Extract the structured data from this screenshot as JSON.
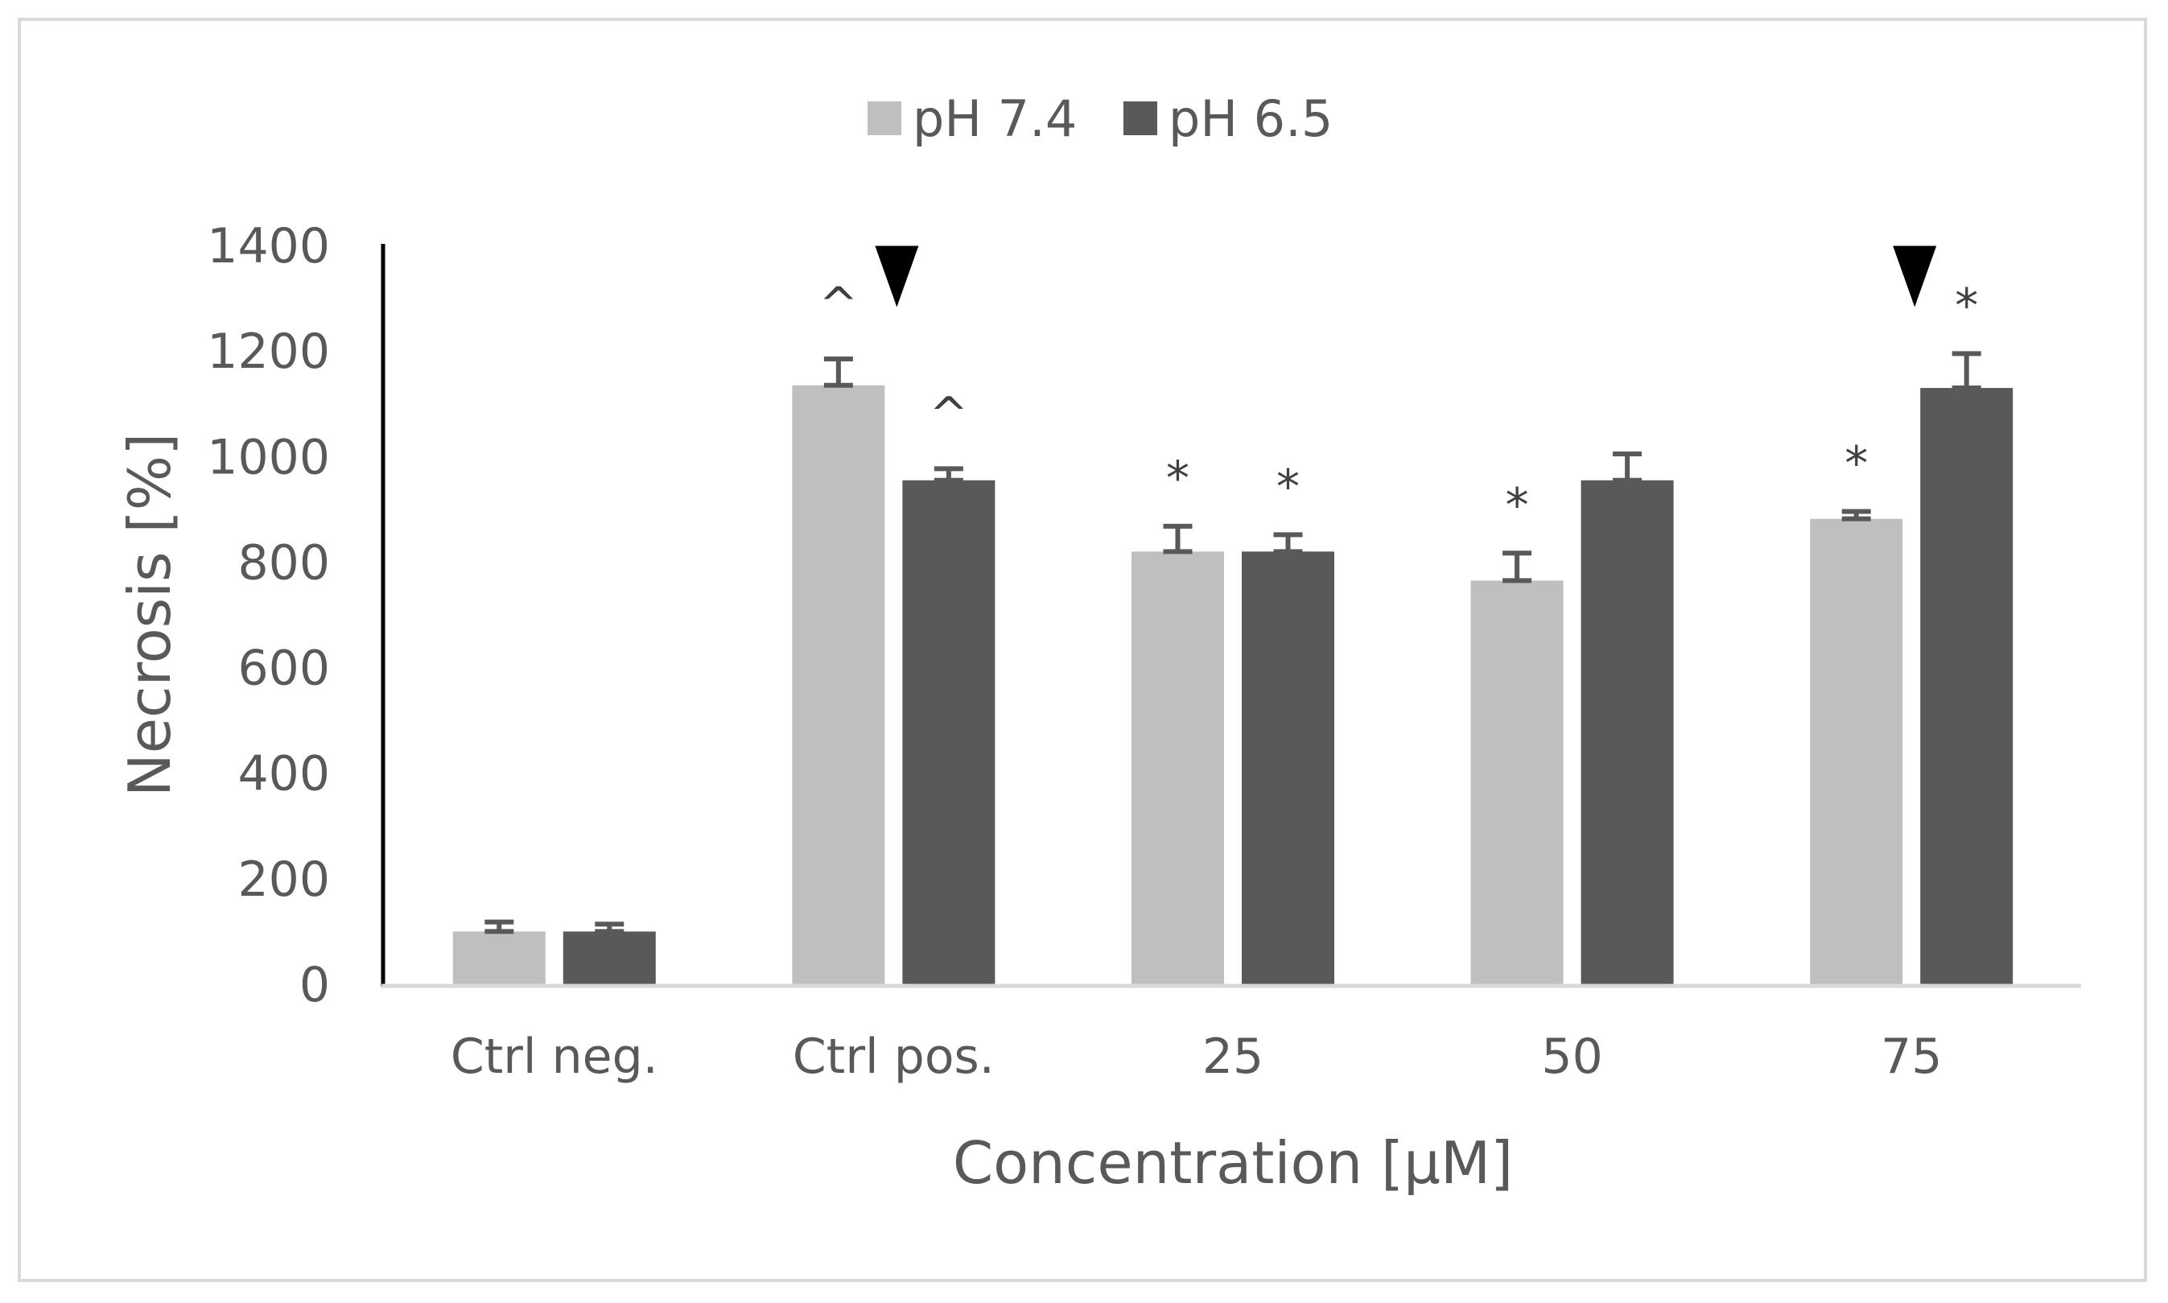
{
  "chart_data": {
    "type": "bar",
    "title": "",
    "xlabel": "Concentration [µM]",
    "ylabel": "Necrosis [%]",
    "ylim": [
      0,
      1400
    ],
    "yticks": [
      0,
      200,
      400,
      600,
      800,
      1000,
      1200,
      1400
    ],
    "categories": [
      "Ctrl neg.",
      "Ctrl pos.",
      "25",
      "50",
      "75"
    ],
    "legend_position": "top-center",
    "series": [
      {
        "name": "pH 7.4",
        "color": "#bfbfbf",
        "values": [
          100,
          1135,
          820,
          765,
          882
        ],
        "errors": [
          18,
          50,
          48,
          52,
          14
        ],
        "annotations": [
          "",
          "^",
          "*",
          "*",
          "*"
        ]
      },
      {
        "name": "pH 6.5",
        "color": "#595959",
        "values": [
          100,
          955,
          820,
          955,
          1130
        ],
        "errors": [
          14,
          22,
          32,
          50,
          65
        ],
        "annotations": [
          "",
          "^",
          "*",
          "",
          "*"
        ]
      }
    ],
    "markers": [
      {
        "type": "down-triangle",
        "category": "Ctrl pos.",
        "value": 1390
      },
      {
        "type": "down-triangle",
        "category": "75",
        "value": 1390
      }
    ]
  }
}
